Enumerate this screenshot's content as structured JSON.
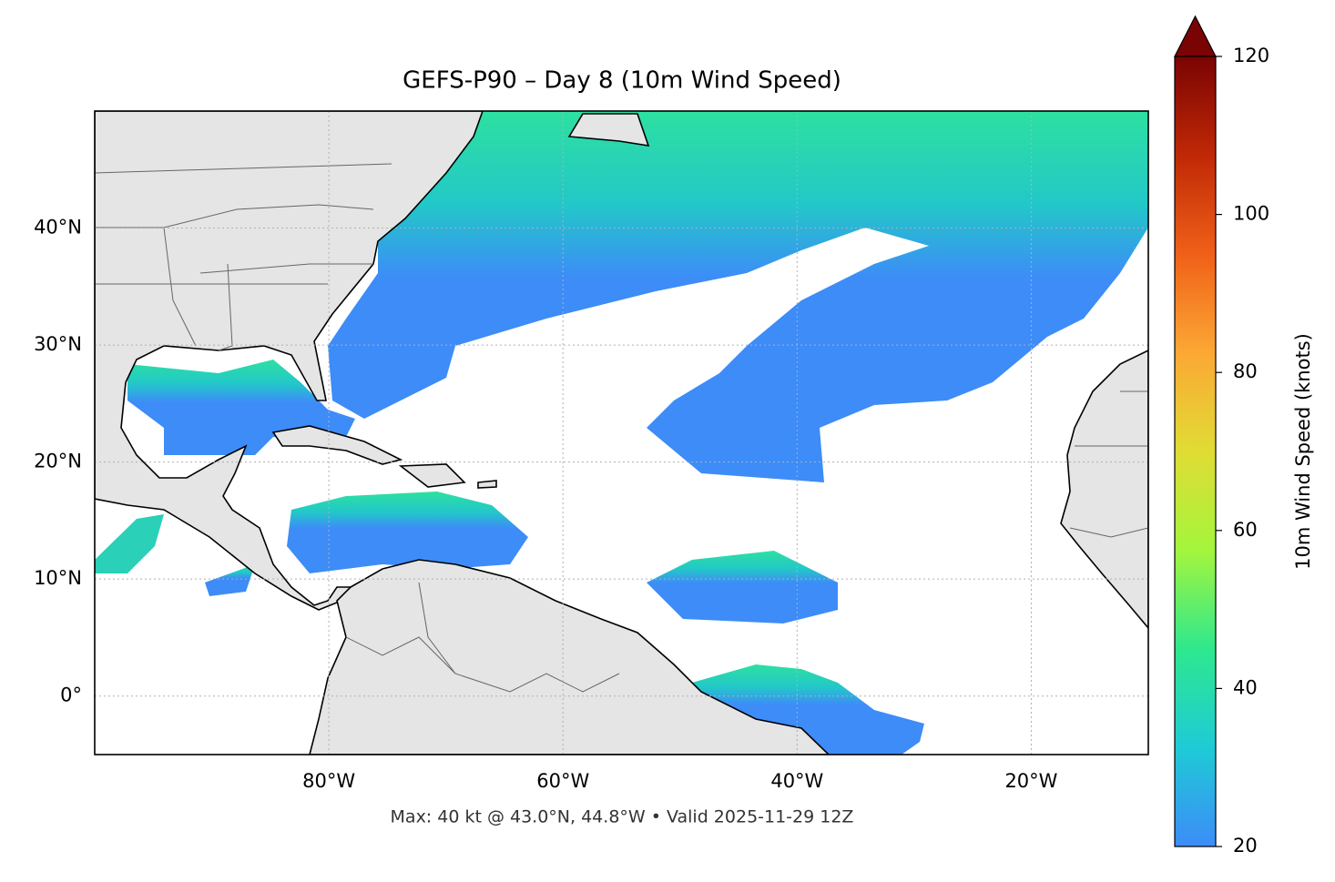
{
  "chart_data": {
    "type": "map",
    "title": "GEFS-P90 – Day 8 (10m Wind Speed)",
    "annotation": "Max: 40 kt @ 43.0°N, 44.8°W • Valid 2025-11-29 12Z",
    "xlim": [
      -100,
      -10
    ],
    "ylim": [
      -5,
      50
    ],
    "xticks": [
      {
        "value": -80,
        "label": "80°W"
      },
      {
        "value": -60,
        "label": "60°W"
      },
      {
        "value": -40,
        "label": "40°W"
      },
      {
        "value": -20,
        "label": "20°W"
      }
    ],
    "yticks": [
      {
        "value": 40,
        "label": "40°N"
      },
      {
        "value": 30,
        "label": "30°N"
      },
      {
        "value": 20,
        "label": "20°N"
      },
      {
        "value": 10,
        "label": "10°N"
      },
      {
        "value": 0,
        "label": "0°"
      }
    ],
    "grid": true,
    "colorbar": {
      "label": "10m Wind Speed (knots)",
      "lim": [
        20,
        120
      ],
      "ticks": [
        20,
        40,
        60,
        80,
        100,
        120
      ],
      "colors": [
        "#3d8cf8",
        "#1ecbd6",
        "#2ee88e",
        "#a4f53c",
        "#e0dc34",
        "#fca834",
        "#f06018",
        "#c02806",
        "#7a0403"
      ]
    }
  }
}
